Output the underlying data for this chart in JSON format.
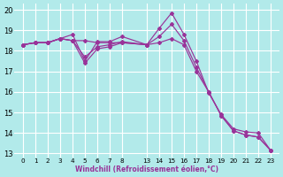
{
  "background_color": "#b2eaea",
  "grid_color": "#ffffff",
  "line_color": "#993399",
  "xlabel": "Windchill (Refroidissement éolien,°C)",
  "xlim": [
    -0.7,
    20.7
  ],
  "ylim": [
    12.8,
    20.3
  ],
  "yticks": [
    13,
    14,
    15,
    16,
    17,
    18,
    19,
    20
  ],
  "x_labels": [
    "0",
    "1",
    "2",
    "3",
    "4",
    "5",
    "6",
    "7",
    "8",
    "",
    "13",
    "14",
    "15",
    "16",
    "17",
    "18",
    "19",
    "20",
    "21",
    "22",
    "23"
  ],
  "x_positions": [
    0,
    1,
    2,
    3,
    4,
    5,
    6,
    7,
    8,
    9,
    10,
    11,
    12,
    13,
    14,
    15,
    16,
    17,
    18,
    19,
    20
  ],
  "tick_positions": [
    0,
    1,
    2,
    3,
    4,
    5,
    6,
    7,
    8,
    10,
    11,
    12,
    13,
    14,
    15,
    16,
    17,
    18,
    19,
    20
  ],
  "tick_labels": [
    "0",
    "1",
    "2",
    "3",
    "4",
    "5",
    "6",
    "7",
    "8",
    "13",
    "14",
    "15",
    "16",
    "17",
    "18",
    "19",
    "20",
    "21",
    "22",
    "23"
  ],
  "series": [
    {
      "xi": [
        0,
        1,
        2,
        3,
        4,
        5,
        6,
        7,
        8,
        10
      ],
      "y": [
        18.3,
        18.4,
        18.4,
        18.6,
        18.5,
        18.5,
        18.4,
        18.4,
        18.4,
        18.3
      ]
    },
    {
      "xi": [
        0,
        1,
        2,
        3,
        4,
        5,
        6,
        7,
        8,
        10,
        11,
        12,
        13,
        14,
        15,
        16,
        17,
        18,
        19,
        20
      ],
      "y": [
        18.3,
        18.4,
        18.4,
        18.6,
        18.8,
        17.5,
        18.45,
        18.45,
        18.7,
        18.3,
        19.1,
        19.85,
        18.8,
        17.5,
        15.95,
        14.9,
        14.2,
        14.05,
        14.0,
        13.15
      ]
    },
    {
      "xi": [
        0,
        1,
        2,
        3,
        4,
        5,
        6,
        7,
        8,
        10,
        11,
        12,
        13,
        14,
        15,
        16,
        17,
        18,
        19,
        20
      ],
      "y": [
        18.3,
        18.4,
        18.4,
        18.6,
        18.5,
        17.7,
        18.2,
        18.3,
        18.45,
        18.3,
        18.7,
        19.3,
        18.5,
        17.2,
        16.0,
        14.85,
        14.1,
        13.9,
        13.8,
        13.15
      ]
    },
    {
      "xi": [
        0,
        1,
        2,
        3,
        4,
        5,
        6,
        7,
        8,
        10,
        11,
        12,
        13,
        14,
        15,
        16,
        17,
        18,
        19,
        20
      ],
      "y": [
        18.3,
        18.4,
        18.4,
        18.6,
        18.5,
        17.4,
        18.1,
        18.2,
        18.4,
        18.3,
        18.4,
        18.6,
        18.3,
        17.0,
        16.0,
        14.85,
        14.1,
        13.9,
        13.8,
        13.15
      ]
    }
  ]
}
